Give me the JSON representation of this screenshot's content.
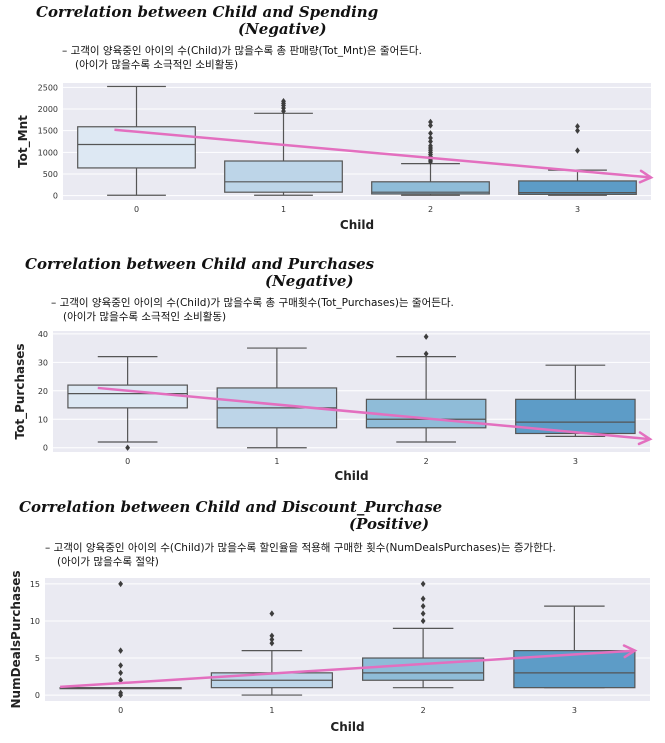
{
  "chart_data": [
    {
      "type": "box",
      "title": "Correlation between Child and Spending",
      "subtitle": "(Negative)",
      "note_line1": "– 고객이 양육중인 아이의 수(Child)가 많을수록 총 판매량(Tot_Mnt)은 줄어든다.",
      "note_line2": "(아이가 많을수록 소극적인 소비활동)",
      "xlabel": "Child",
      "ylabel": "Tot_Mnt",
      "categories": [
        "0",
        "1",
        "2",
        "3"
      ],
      "ylim": [
        -100,
        2600
      ],
      "yticks": [
        0,
        500,
        1000,
        1500,
        2000,
        2500
      ],
      "boxes": [
        {
          "min": 10,
          "q1": 640,
          "median": 1180,
          "q3": 1590,
          "max": 2520,
          "outliers": []
        },
        {
          "min": 10,
          "q1": 80,
          "median": 320,
          "q3": 800,
          "max": 1900,
          "outliers": [
            1950,
            2020,
            2080,
            2130,
            2180
          ]
        },
        {
          "min": 10,
          "q1": 40,
          "median": 80,
          "q3": 320,
          "max": 740,
          "outliers": [
            780,
            820,
            860,
            900,
            950,
            1000,
            1050,
            1100,
            1150,
            1250,
            1330,
            1440,
            1620,
            1700
          ]
        },
        {
          "min": 10,
          "q1": 30,
          "median": 70,
          "q3": 340,
          "max": 590,
          "outliers": [
            1040,
            1500,
            1600
          ]
        }
      ],
      "trend": {
        "from": [
          -0.15,
          1520
        ],
        "to": [
          3.5,
          420
        ]
      },
      "colors": [
        "#dde8f3",
        "#bdd5e8",
        "#8fbcd8",
        "#5d9cc7"
      ]
    },
    {
      "type": "box",
      "title": "Correlation between Child and Purchases",
      "subtitle": "(Negative)",
      "note_line1": "– 고객이 양육중인 아이의 수(Child)가 많을수록 총 구매횟수(Tot_Purchases)는 줄어든다.",
      "note_line2": "(아이가 많을수록 소극적인 소비활동)",
      "xlabel": "Child",
      "ylabel": "Tot_Purchases",
      "categories": [
        "0",
        "1",
        "2",
        "3"
      ],
      "ylim": [
        -1.5,
        41
      ],
      "yticks": [
        0,
        10,
        20,
        30,
        40
      ],
      "boxes": [
        {
          "min": 2,
          "q1": 14,
          "median": 19,
          "q3": 22,
          "max": 32,
          "outliers": [
            0
          ]
        },
        {
          "min": 0,
          "q1": 7,
          "median": 14,
          "q3": 21,
          "max": 35,
          "outliers": []
        },
        {
          "min": 2,
          "q1": 7,
          "median": 10,
          "q3": 17,
          "max": 32,
          "outliers": [
            33,
            39
          ]
        },
        {
          "min": 4,
          "q1": 5,
          "median": 9,
          "q3": 17,
          "max": 29,
          "outliers": []
        }
      ],
      "trend": {
        "from": [
          -0.2,
          21
        ],
        "to": [
          3.5,
          3
        ]
      },
      "colors": [
        "#dde8f3",
        "#bdd5e8",
        "#8fbcd8",
        "#5d9cc7"
      ]
    },
    {
      "type": "box",
      "title": "Correlation between Child and Discount_Purchase",
      "subtitle": "(Positive)",
      "note_line1": "– 고객이 양육중인 아이의 수(Child)가 많을수록 할인율을 적용해 구매한 횟수(NumDealsPurchases)는 증가한다.",
      "note_line2": "(아이가 많을수록 절약)",
      "xlabel": "Child",
      "ylabel": "NumDealsPurchases",
      "categories": [
        "0",
        "1",
        "2",
        "3"
      ],
      "ylim": [
        -0.8,
        15.8
      ],
      "yticks": [
        0,
        5,
        10,
        15
      ],
      "boxes": [
        {
          "min": 1,
          "q1": 1,
          "median": 1,
          "q3": 1,
          "max": 1,
          "outliers": [
            0,
            0.3,
            2,
            3,
            4,
            6,
            15
          ]
        },
        {
          "min": 0,
          "q1": 1,
          "median": 2,
          "q3": 3,
          "max": 6,
          "outliers": [
            7,
            7.5,
            8,
            11
          ]
        },
        {
          "min": 1,
          "q1": 2,
          "median": 3,
          "q3": 5,
          "max": 9,
          "outliers": [
            10,
            11,
            12,
            13,
            15
          ]
        },
        {
          "min": 1,
          "q1": 1,
          "median": 3,
          "q3": 6,
          "max": 12,
          "outliers": []
        }
      ],
      "trend": {
        "from": [
          -0.4,
          1.1
        ],
        "to": [
          3.4,
          6
        ]
      },
      "colors": [
        "#dde8f3",
        "#bdd5e8",
        "#8fbcd8",
        "#5d9cc7"
      ]
    }
  ]
}
